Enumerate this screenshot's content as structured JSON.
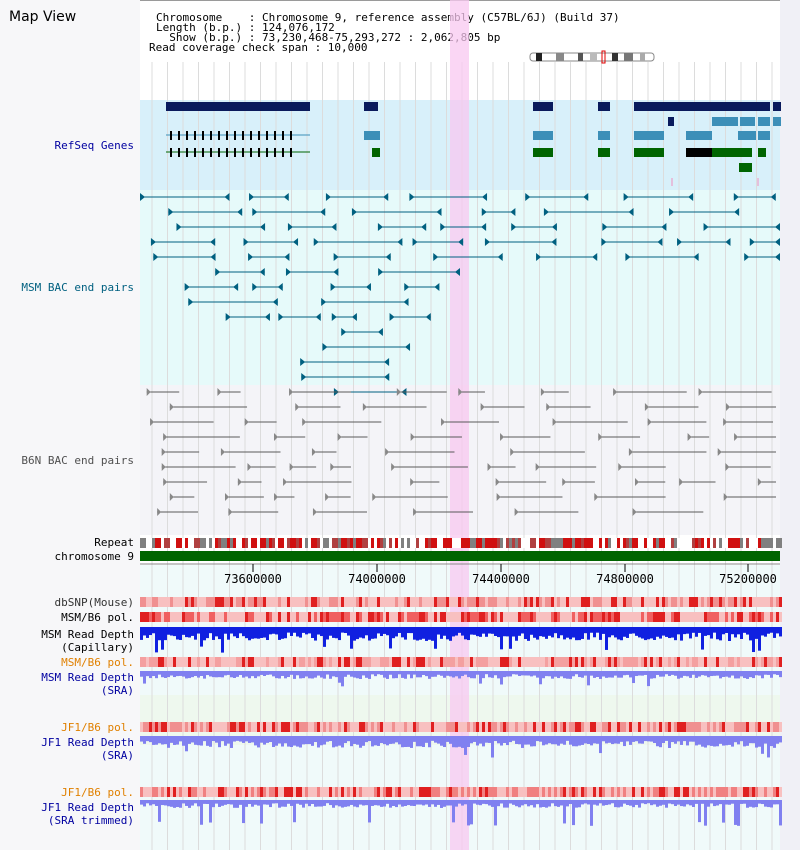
{
  "view": {
    "title": "Map View",
    "header_lines": [
      "Chromosome    : Chromosome 9, reference assembly (C57BL/6J) (Build 37)",
      "Length (b.p.) : 124,076,172",
      "  Show (b.p.) : 73,230,468-75,293,272 : 2,062,805 bp",
      "Read coverage check span : 10,000"
    ]
  },
  "colors": {
    "refseq": "#0a1a5c",
    "refseq_mid": "#3c8fb8",
    "refseq_green": "#006400",
    "msm_bac": "#006080",
    "b6n_bac": "#5a5a5a",
    "repeat_red": "#d01010",
    "chromosome": "#006400",
    "highlight": "#f8c8f0",
    "track_bg_genes": "#d8f0fa",
    "track_bg_msm": "#e6fafa",
    "snp_red": "#f08080",
    "depth_blue": "#1020e0",
    "depth_light": "#8080f0",
    "label_orange": "#e08000",
    "label_blue": "#0000a0"
  },
  "tracks": {
    "refseq": "RefSeq Genes",
    "msm_bac": "MSM BAC end pairs",
    "b6n_bac": "B6N BAC end pairs",
    "repeat": "Repeat",
    "chromosome": "chromosome 9"
  },
  "axis": {
    "ticks": [
      "73600000",
      "74000000",
      "74400000",
      "74800000",
      "75200000"
    ]
  },
  "lower_tracks": [
    {
      "line1": "dbSNP(Mouse)",
      "line2": ""
    },
    {
      "line1": "MSM/B6 pol.",
      "line2": ""
    },
    {
      "line1": "MSM Read Depth",
      "line2": "(Capillary)"
    },
    {
      "line1": "MSM/B6 pol.",
      "line2": ""
    },
    {
      "line1": "MSM Read Depth",
      "line2": "(SRA)"
    },
    {
      "line1": "JF1/B6 pol.",
      "line2": ""
    },
    {
      "line1": "JF1 Read Depth",
      "line2": "(SRA)"
    },
    {
      "line1": "JF1/B6 pol.",
      "line2": ""
    },
    {
      "line1": "JF1 Read Depth",
      "line2": "(SRA trimmed)"
    }
  ]
}
